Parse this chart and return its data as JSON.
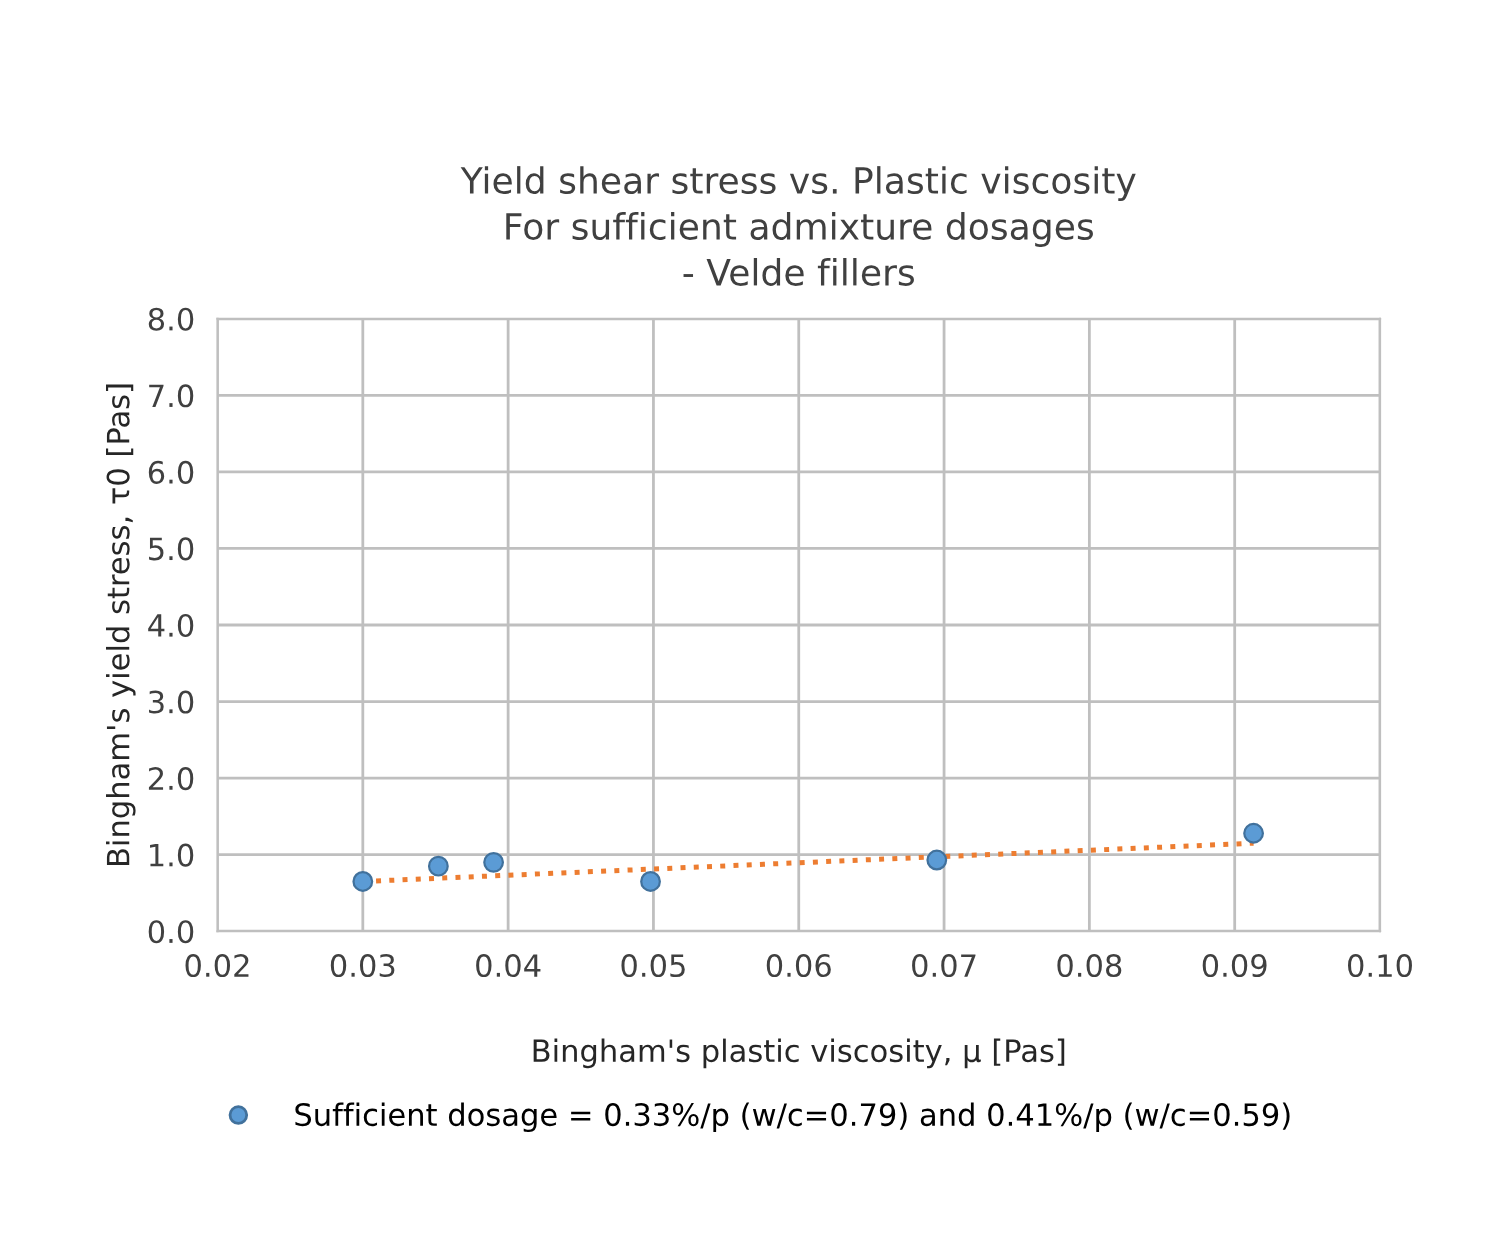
{
  "chart_data": {
    "type": "scatter",
    "title": "Yield shear stress vs. Plastic viscosity\nFor sufficient admixture dosages\n- Velde fillers",
    "xlabel": "Bingham's plastic viscosity, μ [Pas]",
    "ylabel": "Bingham's yield stress, τ0 [Pas]",
    "series": [
      {
        "name": "Sufficient dosage = 0.33%/p (w/c=0.79) and 0.41%/p (w/c=0.59)",
        "color": "#5b9bd5",
        "x": [
          0.03,
          0.0352,
          0.039,
          0.0498,
          0.0695,
          0.0913
        ],
        "values": [
          0.65,
          0.85,
          0.9,
          0.65,
          0.93,
          1.28
        ],
        "marker": "circle"
      },
      {
        "type": "line",
        "color": "#ed7d31",
        "x": [
          0.03,
          0.0913
        ],
        "values": [
          0.65,
          1.15
        ],
        "line_style": "dotted",
        "marker": "none"
      }
    ],
    "xlim": [
      0.02,
      0.1
    ],
    "xticks": [
      {
        "value": 0.02,
        "label": "0.02"
      },
      {
        "value": 0.03,
        "label": "0.03"
      },
      {
        "value": 0.04,
        "label": "0.04"
      },
      {
        "value": 0.05,
        "label": "0.05"
      },
      {
        "value": 0.06,
        "label": "0.06"
      },
      {
        "value": 0.07,
        "label": "0.07"
      },
      {
        "value": 0.08,
        "label": "0.08"
      },
      {
        "value": 0.09,
        "label": "0.09"
      },
      {
        "value": 0.1,
        "label": "0.10"
      }
    ],
    "ylim": [
      0,
      8
    ],
    "yticks": [
      {
        "value": 0,
        "label": "0.0"
      },
      {
        "value": 1,
        "label": "1.0"
      },
      {
        "value": 2,
        "label": "2.0"
      },
      {
        "value": 3,
        "label": "3.0"
      },
      {
        "value": 4,
        "label": "4.0"
      },
      {
        "value": 5,
        "label": "5.0"
      },
      {
        "value": 6,
        "label": "6.0"
      },
      {
        "value": 7,
        "label": "7.0"
      },
      {
        "value": 8,
        "label": "8.0"
      }
    ],
    "grid": true,
    "legend": "bottom"
  }
}
